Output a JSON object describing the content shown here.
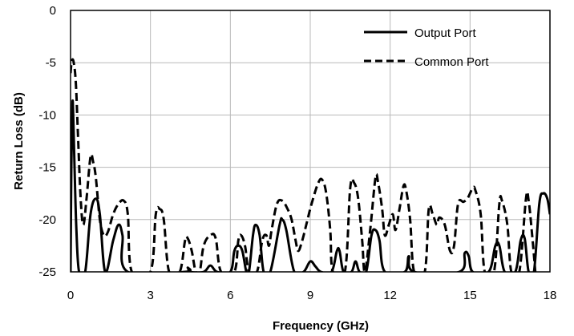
{
  "chart_data": {
    "type": "line",
    "title": "",
    "xlabel": "Frequency (GHz)",
    "ylabel": "Return Loss (dB)",
    "xlim": [
      0,
      18
    ],
    "ylim": [
      -25,
      0
    ],
    "xticks": [
      "0",
      "3",
      "6",
      "9",
      "12",
      "15",
      "18"
    ],
    "yticks": [
      "0",
      "-5",
      "-10",
      "-15",
      "-20",
      "-25"
    ],
    "grid": true,
    "legend": "top-right",
    "series": [
      {
        "name": "Output Port",
        "style": "solid",
        "color": "#000000",
        "points": [
          [
            0.0,
            -25
          ],
          [
            0.03,
            -15
          ],
          [
            0.07,
            -9
          ],
          [
            0.1,
            -10
          ],
          [
            0.15,
            -15
          ],
          [
            0.22,
            -21
          ],
          [
            0.32,
            -25
          ],
          [
            0.55,
            -25
          ],
          [
            0.75,
            -19.5
          ],
          [
            0.95,
            -18
          ],
          [
            1.1,
            -19.5
          ],
          [
            1.3,
            -25
          ],
          [
            1.6,
            -22
          ],
          [
            1.8,
            -20.5
          ],
          [
            1.95,
            -21.5
          ],
          [
            2.15,
            -25
          ],
          [
            4.3,
            -25
          ],
          [
            4.4,
            -24.6
          ],
          [
            4.5,
            -25
          ],
          [
            5.0,
            -25
          ],
          [
            5.25,
            -24.4
          ],
          [
            5.5,
            -25
          ],
          [
            6.0,
            -25
          ],
          [
            6.15,
            -23
          ],
          [
            6.3,
            -22.5
          ],
          [
            6.45,
            -23
          ],
          [
            6.6,
            -25
          ],
          [
            6.7,
            -25
          ],
          [
            6.85,
            -21.5
          ],
          [
            6.95,
            -20.5
          ],
          [
            7.1,
            -21.5
          ],
          [
            7.25,
            -25
          ],
          [
            7.5,
            -25
          ],
          [
            7.85,
            -20.5
          ],
          [
            7.95,
            -20
          ],
          [
            8.1,
            -21
          ],
          [
            8.4,
            -25
          ],
          [
            8.75,
            -25
          ],
          [
            9.0,
            -24
          ],
          [
            9.2,
            -24.5
          ],
          [
            9.4,
            -25
          ],
          [
            9.8,
            -25
          ],
          [
            10.0,
            -23
          ],
          [
            10.1,
            -23
          ],
          [
            10.25,
            -25
          ],
          [
            10.55,
            -25
          ],
          [
            10.7,
            -24
          ],
          [
            10.85,
            -25
          ],
          [
            11.1,
            -25
          ],
          [
            11.3,
            -21.5
          ],
          [
            11.45,
            -21
          ],
          [
            11.6,
            -22
          ],
          [
            11.8,
            -25
          ],
          [
            12.55,
            -25
          ],
          [
            12.7,
            -23.5
          ],
          [
            12.9,
            -25
          ],
          [
            14.6,
            -25
          ],
          [
            14.8,
            -23.2
          ],
          [
            14.95,
            -23.5
          ],
          [
            15.1,
            -25
          ],
          [
            15.7,
            -25
          ],
          [
            15.95,
            -22.5
          ],
          [
            16.1,
            -22.5
          ],
          [
            16.3,
            -25
          ],
          [
            16.7,
            -25
          ],
          [
            16.9,
            -22
          ],
          [
            17.05,
            -21.8
          ],
          [
            17.2,
            -25
          ],
          [
            17.4,
            -25
          ],
          [
            17.6,
            -18.5
          ],
          [
            17.75,
            -17.5
          ],
          [
            17.9,
            -18
          ],
          [
            18.0,
            -19.5
          ]
        ]
      },
      {
        "name": "Common Port",
        "style": "dashed",
        "color": "#000000",
        "points": [
          [
            0.0,
            -6
          ],
          [
            0.05,
            -4.8
          ],
          [
            0.12,
            -5
          ],
          [
            0.2,
            -7
          ],
          [
            0.28,
            -12
          ],
          [
            0.38,
            -18
          ],
          [
            0.48,
            -20.5
          ],
          [
            0.6,
            -18
          ],
          [
            0.75,
            -14
          ],
          [
            0.85,
            -14.5
          ],
          [
            0.95,
            -16
          ],
          [
            1.1,
            -20
          ],
          [
            1.25,
            -21.5
          ],
          [
            1.4,
            -21.2
          ],
          [
            1.6,
            -19.5
          ],
          [
            1.8,
            -18.5
          ],
          [
            2.0,
            -18.2
          ],
          [
            2.15,
            -19.5
          ],
          [
            2.3,
            -25
          ],
          [
            3.0,
            -25
          ],
          [
            3.2,
            -19.5
          ],
          [
            3.35,
            -19
          ],
          [
            3.5,
            -20
          ],
          [
            3.7,
            -25
          ],
          [
            4.1,
            -25
          ],
          [
            4.3,
            -22
          ],
          [
            4.4,
            -21.8
          ],
          [
            4.55,
            -23
          ],
          [
            4.7,
            -25
          ],
          [
            4.85,
            -25
          ],
          [
            5.0,
            -22.5
          ],
          [
            5.25,
            -21.5
          ],
          [
            5.45,
            -21.8
          ],
          [
            5.65,
            -25
          ],
          [
            6.15,
            -25
          ],
          [
            6.3,
            -22
          ],
          [
            6.4,
            -21.5
          ],
          [
            6.55,
            -22.5
          ],
          [
            6.7,
            -25
          ],
          [
            7.0,
            -25
          ],
          [
            7.2,
            -22
          ],
          [
            7.35,
            -21.5
          ],
          [
            7.45,
            -22.5
          ],
          [
            7.55,
            -21
          ],
          [
            7.75,
            -18.5
          ],
          [
            7.95,
            -18.2
          ],
          [
            8.15,
            -19
          ],
          [
            8.3,
            -20
          ],
          [
            8.45,
            -22
          ],
          [
            8.55,
            -23
          ],
          [
            8.7,
            -22
          ],
          [
            8.85,
            -20.5
          ],
          [
            9.05,
            -18.5
          ],
          [
            9.3,
            -16.5
          ],
          [
            9.45,
            -16.2
          ],
          [
            9.6,
            -17.5
          ],
          [
            9.75,
            -21
          ],
          [
            9.85,
            -25
          ],
          [
            10.3,
            -25
          ],
          [
            10.5,
            -17
          ],
          [
            10.65,
            -16.5
          ],
          [
            10.8,
            -18
          ],
          [
            10.95,
            -22
          ],
          [
            11.05,
            -25
          ],
          [
            11.25,
            -21
          ],
          [
            11.45,
            -16
          ],
          [
            11.55,
            -16.5
          ],
          [
            11.7,
            -19
          ],
          [
            11.8,
            -21.5
          ],
          [
            11.95,
            -20.5
          ],
          [
            12.1,
            -19.5
          ],
          [
            12.2,
            -21
          ],
          [
            12.35,
            -19
          ],
          [
            12.5,
            -16.8
          ],
          [
            12.6,
            -17.2
          ],
          [
            12.75,
            -20
          ],
          [
            12.9,
            -25
          ],
          [
            13.3,
            -25
          ],
          [
            13.45,
            -19
          ],
          [
            13.6,
            -19.5
          ],
          [
            13.75,
            -20.5
          ],
          [
            13.85,
            -19.8
          ],
          [
            14.05,
            -20.5
          ],
          [
            14.25,
            -23
          ],
          [
            14.4,
            -22.5
          ],
          [
            14.55,
            -18.5
          ],
          [
            14.75,
            -18.3
          ],
          [
            14.9,
            -18
          ],
          [
            15.1,
            -17
          ],
          [
            15.2,
            -17.2
          ],
          [
            15.4,
            -19.5
          ],
          [
            15.55,
            -25
          ],
          [
            15.9,
            -25
          ],
          [
            16.1,
            -18.5
          ],
          [
            16.2,
            -18.2
          ],
          [
            16.4,
            -20.5
          ],
          [
            16.55,
            -25
          ],
          [
            16.85,
            -25
          ],
          [
            17.1,
            -18
          ],
          [
            17.2,
            -18.2
          ],
          [
            17.35,
            -22
          ],
          [
            17.45,
            -25
          ]
        ]
      }
    ]
  }
}
